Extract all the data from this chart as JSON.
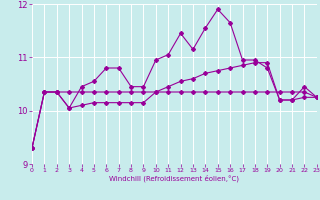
{
  "xlabel": "Windchill (Refroidissement éolien,°C)",
  "xlim": [
    0,
    23
  ],
  "ylim": [
    9,
    12
  ],
  "yticks": [
    9,
    10,
    11,
    12
  ],
  "xticks": [
    0,
    1,
    2,
    3,
    4,
    5,
    6,
    7,
    8,
    9,
    10,
    11,
    12,
    13,
    14,
    15,
    16,
    17,
    18,
    19,
    20,
    21,
    22,
    23
  ],
  "background_color": "#c8ecec",
  "line_color": "#990099",
  "line1_x": [
    0,
    1,
    2,
    3,
    4,
    5,
    6,
    7,
    8,
    9,
    10,
    11,
    12,
    13,
    14,
    15,
    16,
    17,
    18,
    19,
    20,
    21,
    22,
    23
  ],
  "line1_y": [
    9.3,
    10.35,
    10.35,
    10.05,
    10.45,
    10.55,
    10.8,
    10.8,
    10.45,
    10.45,
    10.95,
    11.05,
    11.45,
    11.15,
    11.55,
    11.9,
    11.65,
    10.95,
    10.95,
    10.8,
    10.2,
    10.2,
    10.45,
    10.25
  ],
  "line2_x": [
    0,
    1,
    2,
    3,
    4,
    5,
    6,
    7,
    8,
    9,
    10,
    11,
    12,
    13,
    14,
    15,
    16,
    17,
    18,
    19,
    20,
    21,
    22,
    23
  ],
  "line2_y": [
    9.3,
    10.35,
    10.35,
    10.35,
    10.35,
    10.35,
    10.35,
    10.35,
    10.35,
    10.35,
    10.35,
    10.35,
    10.35,
    10.35,
    10.35,
    10.35,
    10.35,
    10.35,
    10.35,
    10.35,
    10.35,
    10.35,
    10.35,
    10.25
  ],
  "line3_x": [
    0,
    1,
    2,
    3,
    4,
    5,
    6,
    7,
    8,
    9,
    10,
    11,
    12,
    13,
    14,
    15,
    16,
    17,
    18,
    19,
    20,
    21,
    22,
    23
  ],
  "line3_y": [
    9.3,
    10.35,
    10.35,
    10.05,
    10.1,
    10.15,
    10.15,
    10.15,
    10.15,
    10.15,
    10.35,
    10.45,
    10.55,
    10.6,
    10.7,
    10.75,
    10.8,
    10.85,
    10.9,
    10.9,
    10.2,
    10.2,
    10.25,
    10.25
  ]
}
